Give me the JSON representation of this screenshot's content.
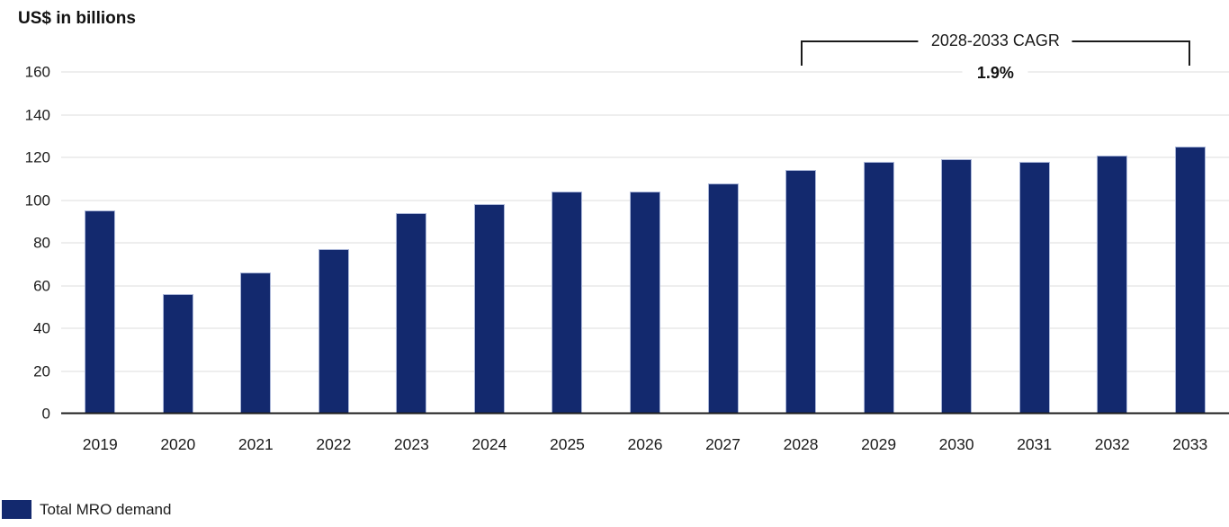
{
  "chart_data": {
    "type": "bar",
    "title": "US$ in billions",
    "categories": [
      "2019",
      "2020",
      "2021",
      "2022",
      "2023",
      "2024",
      "2025",
      "2026",
      "2027",
      "2028",
      "2029",
      "2030",
      "2031",
      "2032",
      "2033"
    ],
    "series": [
      {
        "name": "Total MRO demand",
        "values": [
          95,
          56,
          66,
          77,
          94,
          98,
          104,
          104,
          108,
          114,
          118,
          119,
          118,
          121,
          125
        ]
      }
    ],
    "xlabel": "",
    "ylabel": "US$ in billions",
    "ylim": [
      0,
      160
    ],
    "yticks": [
      0,
      20,
      40,
      60,
      80,
      100,
      120,
      140,
      160
    ],
    "grid": true,
    "legend_position": "bottom-left",
    "bar_color": "#13296E",
    "annotation": {
      "label": "2028-2033 CAGR",
      "value": "1.9%",
      "span": [
        "2028",
        "2033"
      ]
    }
  },
  "legend": {
    "label": "Total MRO demand",
    "swatch_color": "#13296E"
  },
  "colors": {
    "bar": "#13296E",
    "gridline": "#dcdcdc",
    "axis_line": "#1f1f1f",
    "text": "#1a1a1a"
  }
}
